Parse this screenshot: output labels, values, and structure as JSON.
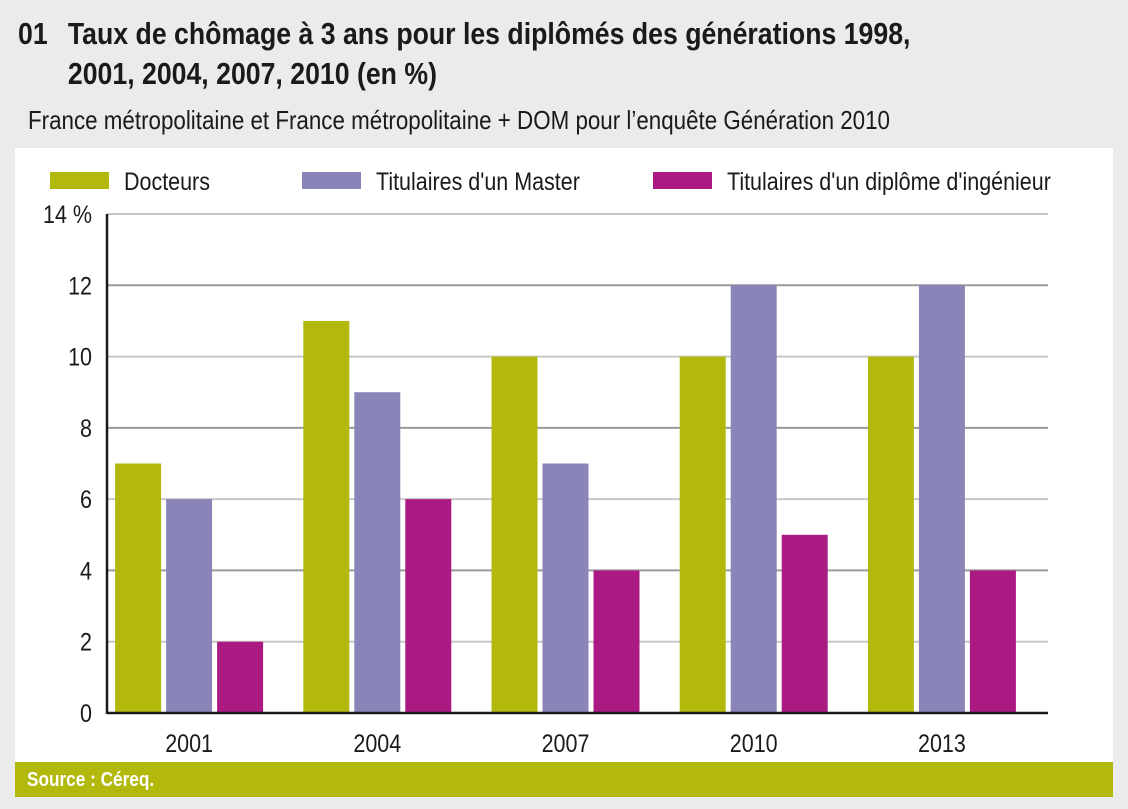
{
  "header": {
    "number": "01",
    "title_line1": "Taux de chômage à 3 ans pour les diplômés des générations 1998,",
    "title_line2": "2001, 2004, 2007, 2010 (en %)",
    "subtitle": "France métropolitaine et France métropolitaine + DOM pour l’enquête Génération 2010"
  },
  "footer": {
    "source": "Source : Céreq."
  },
  "chart_data": {
    "type": "bar",
    "title": "Taux de chômage à 3 ans pour les diplômés des générations 1998, 2001, 2004, 2007, 2010 (en %)",
    "subtitle": "France métropolitaine et France métropolitaine + DOM pour l’enquête Génération 2010",
    "categories": [
      "2001",
      "2004",
      "2007",
      "2010",
      "2013"
    ],
    "series": [
      {
        "name": "Docteurs",
        "color": "#b2b80c",
        "values": [
          7,
          11,
          10,
          10,
          10
        ]
      },
      {
        "name": "Titulaires d'un Master",
        "color": "#8a85b9",
        "values": [
          6,
          9,
          7,
          12,
          12
        ]
      },
      {
        "name": "Titulaires d'un diplôme d'ingénieur",
        "color": "#ab1a82",
        "values": [
          2,
          6,
          4,
          5,
          4
        ]
      }
    ],
    "xlabel": "",
    "ylabel": "",
    "ylim": [
      0,
      14
    ],
    "yticks": [
      0,
      2,
      4,
      6,
      8,
      10,
      12,
      14
    ],
    "ytick_labels": [
      "0",
      "2",
      "4",
      "6",
      "8",
      "10",
      "12",
      "14 %"
    ],
    "grid": true,
    "legend_position": "top"
  }
}
